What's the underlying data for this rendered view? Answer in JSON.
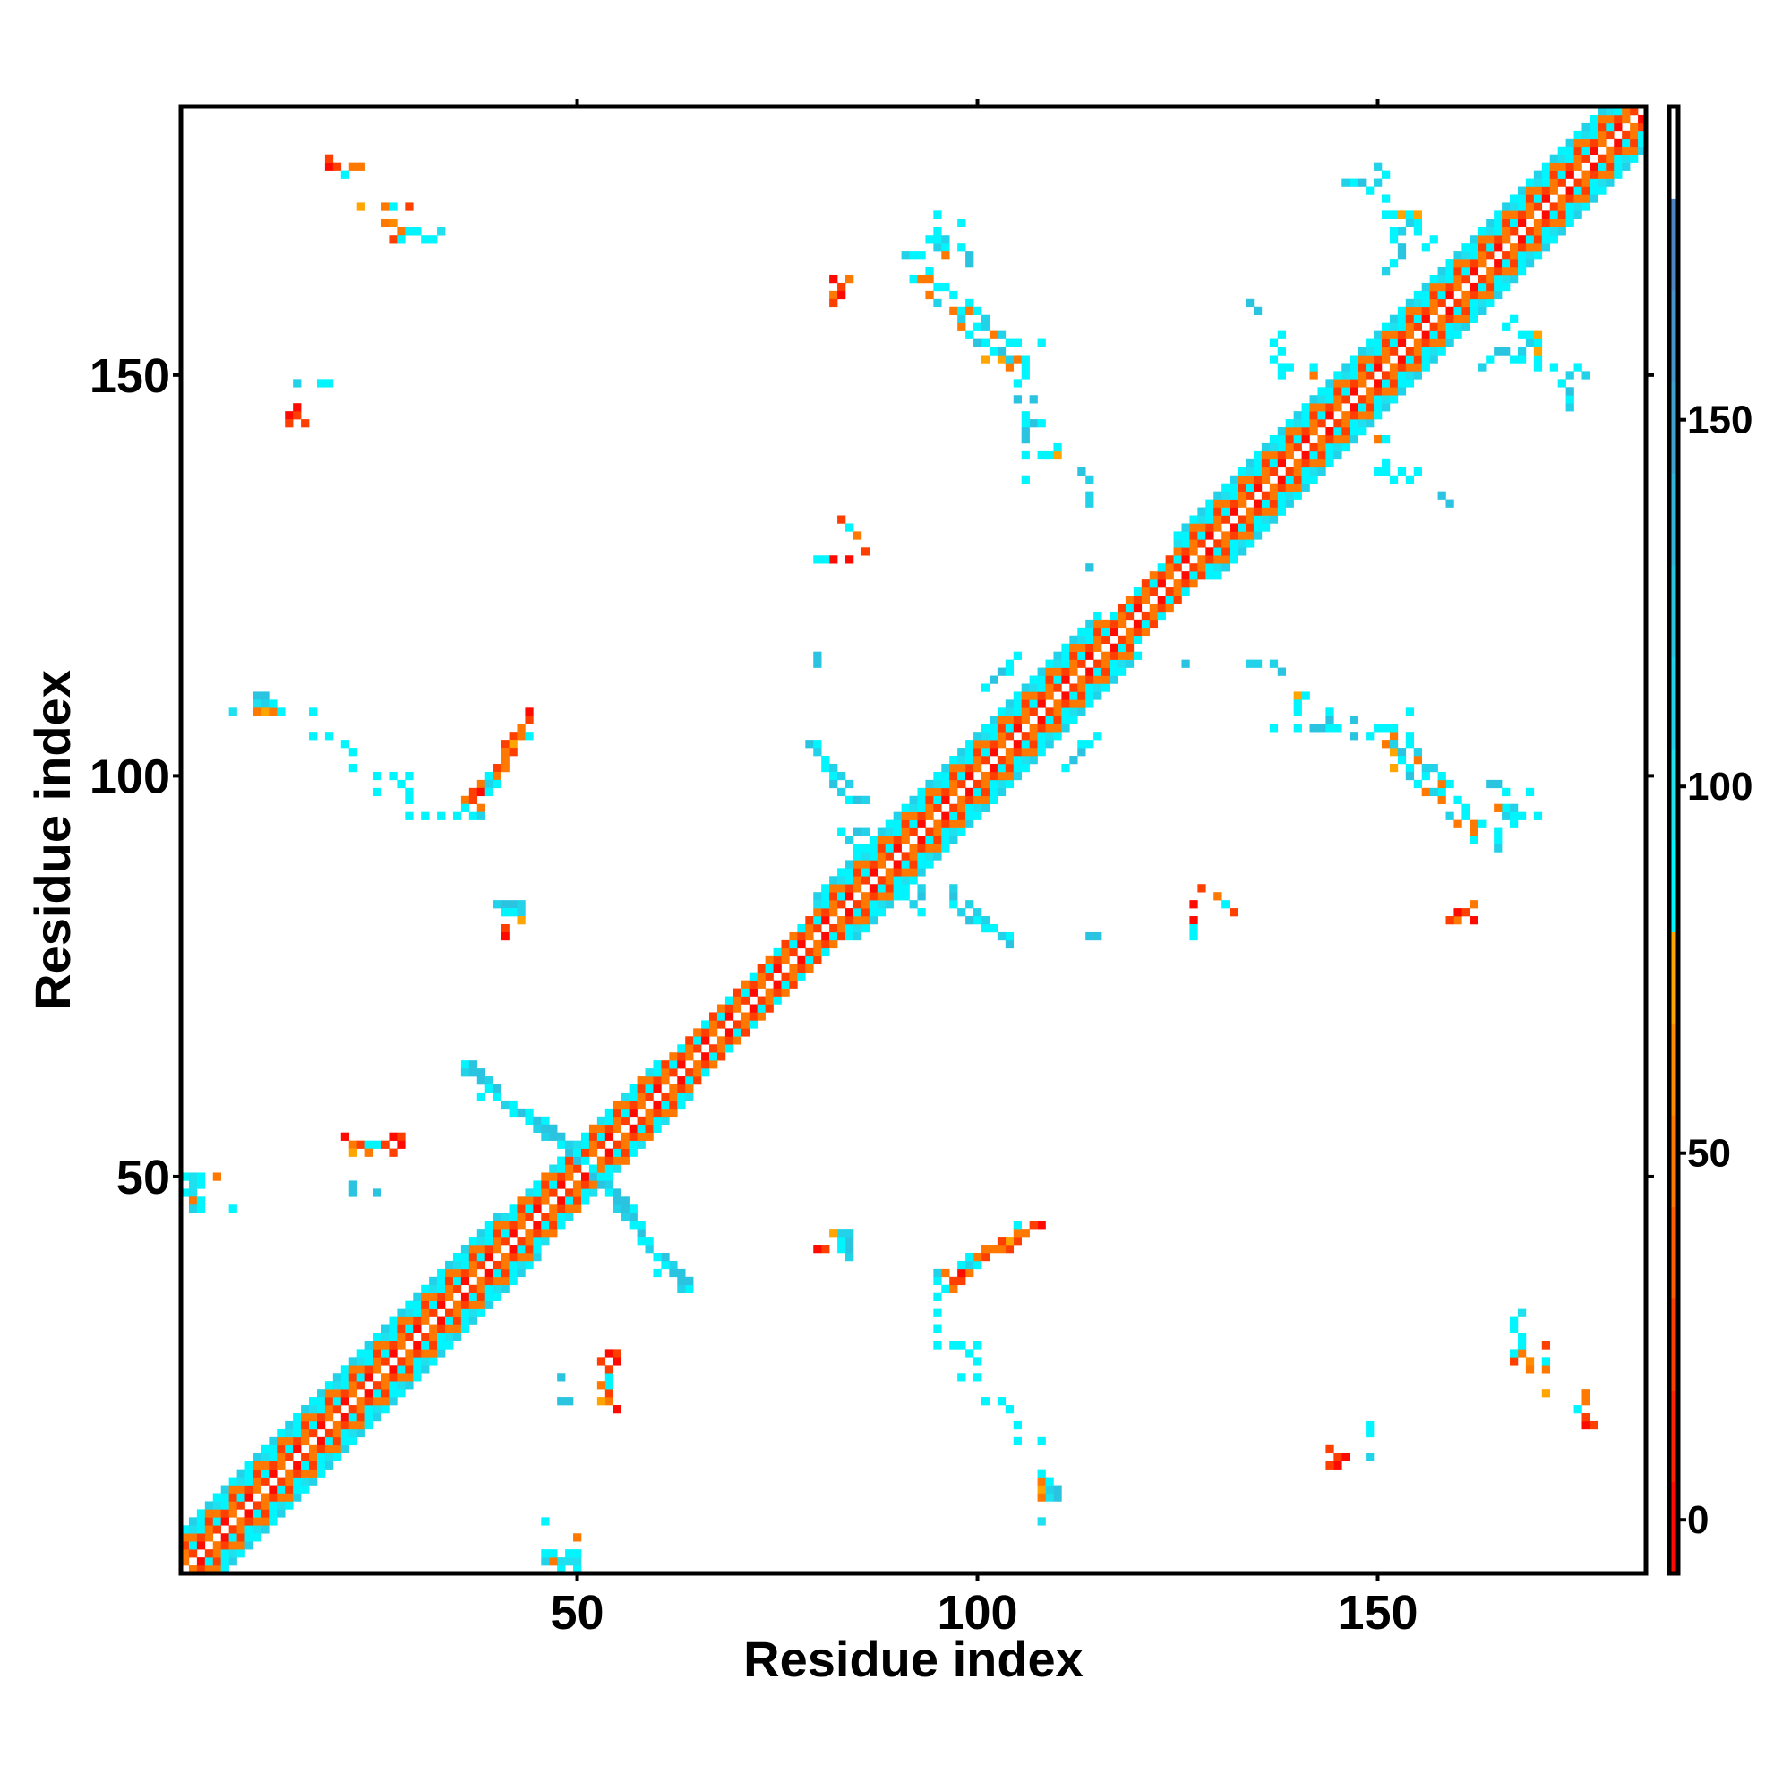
{
  "chart_data": {
    "type": "heatmap",
    "title": "",
    "xlabel": "Residue index",
    "ylabel": "Residue index",
    "xlim": [
      0.5,
      183.5
    ],
    "ylim": [
      0.5,
      183.5
    ],
    "xticks": [
      50,
      100,
      150
    ],
    "yticks": [
      50,
      100,
      150
    ],
    "grid": false,
    "symmetric": true,
    "colorbar": {
      "range": [
        -7.3,
        192.7
      ],
      "ticks": [
        0,
        50,
        100,
        150
      ],
      "band_colors": [
        "#ff0a00",
        "#ff2400",
        "#ff3f00",
        "#ff5e00",
        "#ff7800",
        "#ff8c00",
        "#ffa500",
        "#00f5ff",
        "#1ee0ef",
        "#22d2e8",
        "#2ac4e0",
        "#34b4d6",
        "#3ea4cc",
        "#4894c6",
        "#4d84c0",
        "#ffffff"
      ]
    },
    "diagonal": {
      "segments": [
        {
          "start": 1,
          "end": 40,
          "width": 5
        },
        {
          "start": 40,
          "end": 60,
          "width": 4
        },
        {
          "start": 60,
          "end": 80,
          "width": 3
        },
        {
          "start": 80,
          "end": 115,
          "width": 5
        },
        {
          "start": 115,
          "end": 125,
          "width": 3
        },
        {
          "start": 125,
          "end": 183,
          "width": 5
        }
      ],
      "offset_values": [
        [
          5,
          30,
          55
        ],
        [
          30,
          90,
          55
        ],
        [
          90,
          55,
          30
        ],
        [
          90,
          100,
          55
        ],
        [
          90,
          115
        ]
      ]
    },
    "contacts": [
      [
        19,
        176,
        5
      ],
      [
        20,
        176,
        30
      ],
      [
        21,
        175,
        90
      ],
      [
        22,
        176,
        55
      ],
      [
        23,
        176,
        55
      ],
      [
        19,
        177,
        30
      ],
      [
        23,
        171,
        75
      ],
      [
        26,
        171,
        55
      ],
      [
        27,
        171,
        90
      ],
      [
        29,
        171,
        30
      ],
      [
        26,
        169,
        55
      ],
      [
        27,
        169,
        60
      ],
      [
        28,
        168,
        55
      ],
      [
        29,
        168,
        90
      ],
      [
        30,
        168,
        90
      ],
      [
        31,
        167,
        90
      ],
      [
        32,
        167,
        90
      ],
      [
        27,
        167,
        30
      ],
      [
        28,
        167,
        90
      ],
      [
        33,
        168,
        95
      ],
      [
        14,
        145,
        5
      ],
      [
        15,
        145,
        30
      ],
      [
        14,
        144,
        30
      ],
      [
        15,
        146,
        5
      ],
      [
        16,
        144,
        30
      ],
      [
        15,
        149,
        115
      ],
      [
        18,
        149,
        90
      ],
      [
        19,
        149,
        90
      ],
      [
        7,
        108,
        95
      ],
      [
        10,
        110,
        130
      ],
      [
        11,
        110,
        130
      ],
      [
        10,
        109,
        100
      ],
      [
        11,
        109,
        115
      ],
      [
        10,
        108,
        55
      ],
      [
        11,
        108,
        75
      ],
      [
        12,
        108,
        55
      ],
      [
        13,
        108,
        90
      ],
      [
        17,
        108,
        90
      ],
      [
        12,
        109,
        90
      ],
      [
        17,
        105,
        90
      ],
      [
        19,
        105,
        90
      ],
      [
        21,
        104,
        90
      ],
      [
        22,
        103,
        90
      ],
      [
        22,
        101,
        90
      ],
      [
        25,
        100,
        90
      ],
      [
        27,
        100,
        90
      ],
      [
        28,
        99,
        90
      ],
      [
        29,
        100,
        90
      ],
      [
        25,
        98,
        90
      ],
      [
        29,
        98,
        90
      ],
      [
        29,
        97,
        90
      ],
      [
        29,
        95,
        90
      ],
      [
        31,
        95,
        90
      ],
      [
        33,
        95,
        90
      ],
      [
        35,
        95,
        90
      ],
      [
        44,
        108,
        5
      ],
      [
        44,
        107,
        30
      ],
      [
        43,
        106,
        55
      ],
      [
        42,
        105,
        30
      ],
      [
        43,
        105,
        55
      ],
      [
        44,
        105,
        90
      ],
      [
        41,
        104,
        30
      ],
      [
        42,
        104,
        75
      ],
      [
        41,
        103,
        55
      ],
      [
        42,
        103,
        30
      ],
      [
        41,
        102,
        55
      ],
      [
        40,
        101,
        30
      ],
      [
        41,
        101,
        55
      ],
      [
        39,
        100,
        90
      ],
      [
        40,
        100,
        55
      ],
      [
        38,
        99,
        55
      ],
      [
        39,
        99,
        115
      ],
      [
        40,
        99,
        90
      ],
      [
        37,
        98,
        30
      ],
      [
        38,
        98,
        5
      ],
      [
        39,
        98,
        90
      ],
      [
        36,
        97,
        55
      ],
      [
        37,
        97,
        30
      ],
      [
        36,
        96,
        90
      ],
      [
        38,
        96,
        55
      ],
      [
        37,
        95,
        90
      ],
      [
        38,
        95,
        115
      ],
      [
        40,
        84,
        115
      ],
      [
        41,
        84,
        130
      ],
      [
        42,
        84,
        130
      ],
      [
        43,
        84,
        115
      ],
      [
        41,
        83,
        90
      ],
      [
        42,
        83,
        90
      ],
      [
        43,
        83,
        115
      ],
      [
        43,
        82,
        75
      ],
      [
        41,
        81,
        30
      ],
      [
        41,
        80,
        5
      ],
      [
        21,
        55,
        5
      ],
      [
        22,
        54,
        55
      ],
      [
        23,
        54,
        30
      ],
      [
        24,
        54,
        90
      ],
      [
        25,
        54,
        90
      ],
      [
        26,
        54,
        30
      ],
      [
        27,
        55,
        5
      ],
      [
        28,
        55,
        30
      ],
      [
        28,
        54,
        5
      ],
      [
        22,
        53,
        75
      ],
      [
        24,
        53,
        55
      ],
      [
        27,
        53,
        30
      ],
      [
        22,
        49,
        130
      ],
      [
        22,
        48,
        130
      ],
      [
        25,
        48,
        130
      ],
      [
        1,
        50,
        90
      ],
      [
        2,
        50,
        95
      ],
      [
        3,
        50,
        90
      ],
      [
        5,
        50,
        55
      ],
      [
        2,
        49,
        100
      ],
      [
        3,
        49,
        90
      ],
      [
        1,
        48,
        90
      ],
      [
        2,
        48,
        100
      ],
      [
        2,
        47,
        55
      ],
      [
        3,
        47,
        90
      ],
      [
        2,
        46,
        115
      ],
      [
        3,
        46,
        90
      ],
      [
        7,
        46,
        90
      ],
      [
        36,
        64,
        90
      ],
      [
        37,
        64,
        130
      ],
      [
        36,
        63,
        115
      ],
      [
        37,
        63,
        130
      ],
      [
        38,
        63,
        130
      ],
      [
        38,
        62,
        130
      ],
      [
        39,
        62,
        115
      ],
      [
        39,
        61,
        90
      ],
      [
        40,
        61,
        130
      ],
      [
        38,
        60,
        90
      ],
      [
        40,
        60,
        90
      ],
      [
        41,
        59,
        115
      ],
      [
        42,
        59,
        90
      ],
      [
        43,
        58,
        130
      ],
      [
        44,
        58,
        90
      ],
      [
        42,
        58,
        90
      ],
      [
        44,
        57,
        90
      ],
      [
        45,
        57,
        130
      ],
      [
        46,
        57,
        90
      ],
      [
        45,
        56,
        115
      ],
      [
        46,
        56,
        130
      ],
      [
        47,
        56,
        130
      ],
      [
        46,
        55,
        115
      ],
      [
        47,
        55,
        130
      ],
      [
        48,
        55,
        130
      ],
      [
        48,
        54,
        90
      ],
      [
        49,
        54,
        115
      ],
      [
        49,
        53,
        130
      ],
      [
        50,
        53,
        90
      ],
      [
        50,
        52,
        130
      ],
      [
        51,
        52,
        90
      ],
      [
        82,
        162,
        5
      ],
      [
        83,
        161,
        30
      ],
      [
        84,
        162,
        55
      ],
      [
        82,
        160,
        55
      ],
      [
        83,
        160,
        5
      ],
      [
        82,
        159,
        30
      ],
      [
        91,
        165,
        115
      ],
      [
        92,
        165,
        90
      ],
      [
        93,
        165,
        90
      ],
      [
        95,
        166,
        115
      ],
      [
        96,
        166,
        90
      ],
      [
        94,
        167,
        90
      ],
      [
        95,
        167,
        90
      ],
      [
        96,
        167,
        115
      ],
      [
        95,
        168,
        90
      ],
      [
        95,
        170,
        90
      ],
      [
        94,
        163,
        90
      ],
      [
        92,
        162,
        90
      ],
      [
        93,
        162,
        55
      ],
      [
        94,
        162,
        55
      ],
      [
        95,
        161,
        90
      ],
      [
        96,
        161,
        90
      ],
      [
        99,
        159,
        90
      ],
      [
        97,
        158,
        55
      ],
      [
        98,
        158,
        90
      ],
      [
        99,
        158,
        55
      ],
      [
        100,
        158,
        90
      ],
      [
        101,
        157,
        115
      ],
      [
        100,
        156,
        90
      ],
      [
        101,
        156,
        115
      ],
      [
        102,
        155,
        55
      ],
      [
        103,
        155,
        115
      ],
      [
        104,
        154,
        90
      ],
      [
        105,
        154,
        90
      ],
      [
        105,
        152,
        55
      ],
      [
        106,
        152,
        90
      ],
      [
        103,
        152,
        75
      ],
      [
        106,
        151,
        90
      ],
      [
        101,
        152,
        75
      ],
      [
        108,
        154,
        90
      ],
      [
        80,
        127,
        90
      ],
      [
        82,
        127,
        5
      ],
      [
        84,
        127,
        5
      ],
      [
        86,
        128,
        30
      ],
      [
        85,
        130,
        55
      ],
      [
        84,
        131,
        90
      ],
      [
        83,
        132,
        30
      ],
      [
        81,
        127,
        90
      ],
      [
        80,
        115,
        130
      ],
      [
        80,
        114,
        130
      ],
      [
        79,
        104,
        130
      ],
      [
        80,
        104,
        90
      ],
      [
        80,
        103,
        115
      ],
      [
        81,
        102,
        90
      ],
      [
        81,
        101,
        90
      ],
      [
        82,
        101,
        115
      ],
      [
        82,
        100,
        90
      ],
      [
        83,
        100,
        115
      ],
      [
        82,
        99,
        130
      ],
      [
        84,
        99,
        115
      ],
      [
        83,
        98,
        115
      ],
      [
        84,
        97,
        90
      ],
      [
        85,
        97,
        130
      ],
      [
        86,
        97,
        115
      ],
      [
        84,
        92,
        115
      ],
      [
        85,
        91,
        90
      ],
      [
        86,
        91,
        90
      ],
      [
        85,
        93,
        130
      ],
      [
        86,
        93,
        115
      ],
      [
        87,
        90,
        90
      ],
      [
        83,
        93,
        90
      ],
      [
        105,
        147,
        130
      ],
      [
        107,
        147,
        130
      ],
      [
        106,
        145,
        90
      ],
      [
        107,
        144,
        130
      ],
      [
        108,
        144,
        90
      ],
      [
        106,
        143,
        130
      ],
      [
        113,
        138,
        130
      ],
      [
        114,
        137,
        115
      ],
      [
        114,
        126,
        130
      ],
      [
        114,
        134,
        115
      ],
      [
        114,
        135,
        115
      ],
      [
        102,
        112,
        130
      ],
      [
        103,
        113,
        130
      ],
      [
        104,
        114,
        90
      ],
      [
        105,
        115,
        90
      ],
      [
        104,
        113,
        90
      ],
      [
        101,
        111,
        90
      ],
      [
        134,
        159,
        130
      ],
      [
        137,
        154,
        90
      ],
      [
        137,
        152,
        90
      ],
      [
        138,
        151,
        90
      ],
      [
        139,
        151,
        90
      ],
      [
        142,
        150,
        55
      ],
      [
        142,
        151,
        90
      ],
      [
        152,
        167,
        90
      ],
      [
        153,
        168,
        115
      ],
      [
        154,
        169,
        115
      ],
      [
        155,
        169,
        90
      ],
      [
        156,
        166,
        90
      ],
      [
        153,
        166,
        130
      ],
      [
        146,
        174,
        115
      ],
      [
        147,
        174,
        90
      ],
      [
        148,
        174,
        130
      ],
      [
        149,
        173,
        90
      ],
      [
        150,
        174,
        115
      ],
      [
        151,
        175,
        90
      ],
      [
        150,
        176,
        115
      ],
      [
        151,
        172,
        90
      ],
      [
        152,
        170,
        90
      ],
      [
        153,
        170,
        75
      ],
      [
        154,
        170,
        90
      ],
      [
        138,
        150,
        90
      ],
      [
        138,
        153,
        90
      ],
      [
        138,
        155,
        90
      ],
      [
        135,
        158,
        130
      ],
      [
        151,
        163,
        115
      ],
      [
        152,
        164,
        90
      ],
      [
        153,
        165,
        130
      ],
      [
        155,
        168,
        90
      ],
      [
        157,
        167,
        90
      ],
      [
        155,
        170,
        75
      ],
      [
        152,
        168,
        90
      ],
      [
        151,
        170,
        90
      ],
      [
        106,
        137,
        90
      ],
      [
        106,
        140,
        90
      ],
      [
        110,
        140,
        75
      ],
      [
        110,
        141,
        90
      ],
      [
        106,
        142,
        130
      ],
      [
        105,
        149,
        90
      ],
      [
        106,
        150,
        90
      ],
      [
        104,
        151,
        55
      ],
      [
        104,
        152,
        115
      ],
      [
        103,
        153,
        130
      ],
      [
        102,
        153,
        90
      ],
      [
        101,
        154,
        90
      ],
      [
        100,
        154,
        130
      ],
      [
        99,
        155,
        90
      ],
      [
        98,
        156,
        55
      ],
      [
        98,
        157,
        115
      ],
      [
        97,
        160,
        90
      ],
      [
        95,
        159,
        115
      ],
      [
        94,
        160,
        55
      ],
      [
        99,
        164,
        130
      ],
      [
        99,
        165,
        130
      ],
      [
        98,
        166,
        90
      ],
      [
        96,
        165,
        55
      ],
      [
        98,
        169,
        90
      ],
      [
        108,
        140,
        90
      ],
      [
        109,
        140,
        90
      ],
      [
        106,
        144,
        90
      ]
    ]
  }
}
